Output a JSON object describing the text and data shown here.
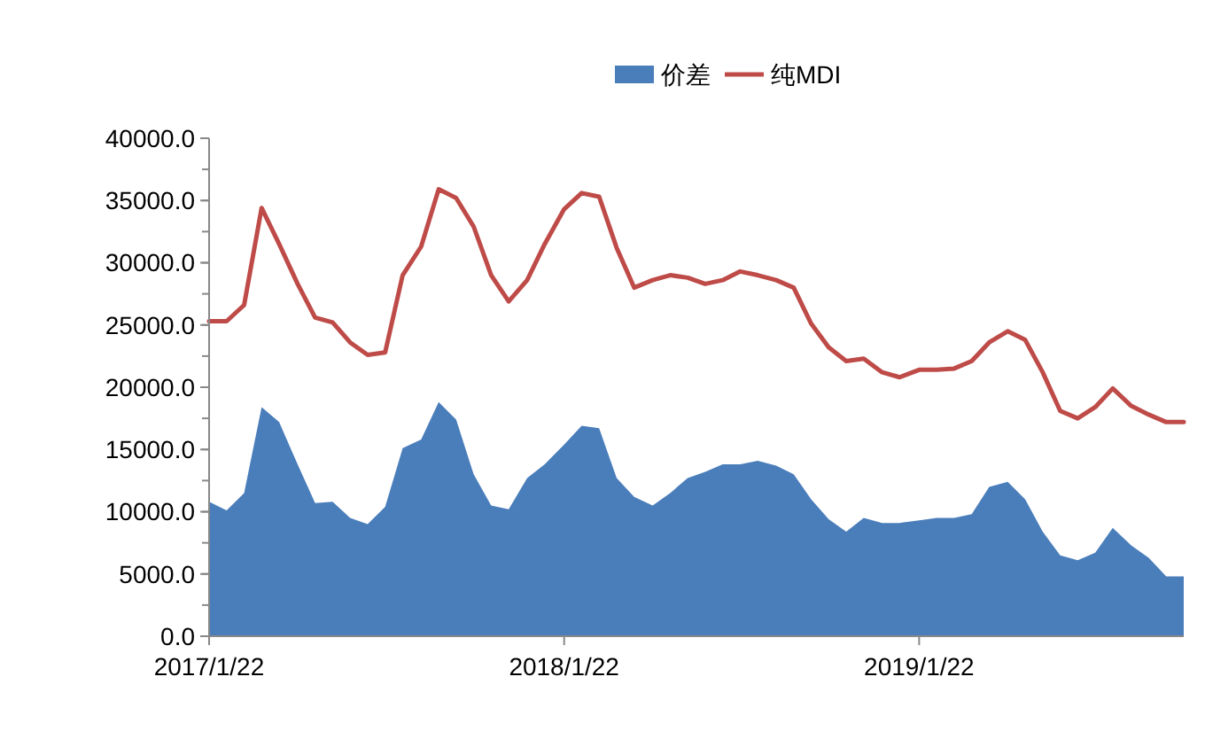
{
  "chart_data": {
    "type": "line",
    "legend": "top",
    "x": [
      "2017-01-22",
      "2017-02-09",
      "2017-02-27",
      "2017-03-17",
      "2017-04-04",
      "2017-04-23",
      "2017-05-11",
      "2017-05-29",
      "2017-06-16",
      "2017-07-04",
      "2017-07-22",
      "2017-08-09",
      "2017-08-28",
      "2017-09-15",
      "2017-10-03",
      "2017-10-21",
      "2017-11-08",
      "2017-11-26",
      "2017-12-15",
      "2018-01-02",
      "2018-01-22",
      "2018-02-09",
      "2018-02-27",
      "2018-03-17",
      "2018-04-04",
      "2018-04-23",
      "2018-05-11",
      "2018-05-29",
      "2018-06-16",
      "2018-07-04",
      "2018-07-22",
      "2018-08-09",
      "2018-08-28",
      "2018-09-15",
      "2018-10-03",
      "2018-10-21",
      "2018-11-08",
      "2018-11-26",
      "2018-12-15",
      "2019-01-02",
      "2019-01-22",
      "2019-02-09",
      "2019-02-27",
      "2019-03-17",
      "2019-04-04",
      "2019-04-23",
      "2019-05-11",
      "2019-05-29",
      "2019-06-16",
      "2019-07-04",
      "2019-07-22",
      "2019-08-09",
      "2019-08-28",
      "2019-09-15",
      "2019-10-03",
      "2019-10-21"
    ],
    "series": [
      {
        "name": "价差",
        "type": "area",
        "color": "#4a7ebb",
        "values": [
          10800,
          10100,
          11500,
          18400,
          17200,
          13800,
          10700,
          10800,
          9500,
          9000,
          10400,
          15100,
          15800,
          18800,
          17400,
          13000,
          10500,
          10200,
          12700,
          13800,
          15400,
          16900,
          16700,
          12700,
          11200,
          10500,
          11500,
          12700,
          13200,
          13800,
          13800,
          14100,
          13700,
          13000,
          11000,
          9400,
          8400,
          9500,
          9100,
          9100,
          9300,
          9500,
          9500,
          9800,
          12000,
          12400,
          11000,
          8400,
          6500,
          6100,
          6700,
          8700,
          7300,
          6300,
          4800,
          4800
        ]
      },
      {
        "name": "纯MDI",
        "type": "line",
        "color": "#be4b48",
        "values": [
          25300,
          25300,
          26600,
          34400,
          31500,
          28300,
          25600,
          25200,
          23600,
          22600,
          22800,
          29000,
          31300,
          35900,
          35200,
          32900,
          29000,
          26900,
          28600,
          31500,
          34300,
          35600,
          35300,
          31200,
          28000,
          28600,
          29000,
          28800,
          28300,
          28600,
          29300,
          29000,
          28600,
          28000,
          25100,
          23200,
          22100,
          22300,
          21200,
          20800,
          21400,
          21400,
          21500,
          22100,
          23600,
          24500,
          23800,
          21200,
          18100,
          17500,
          18400,
          19900,
          18500,
          17800,
          17200,
          17200
        ]
      }
    ],
    "xlim": [
      "2017-01-22",
      "2019-10-21"
    ],
    "xticks": [
      {
        "value": "2017-01-22",
        "label": "2017/1/22"
      },
      {
        "value": "2018-01-22",
        "label": "2018/1/22"
      },
      {
        "value": "2019-01-22",
        "label": "2019/1/22"
      }
    ],
    "ylim": [
      0,
      40000
    ],
    "yticks": [
      {
        "value": 0,
        "label": "0.0"
      },
      {
        "value": 5000,
        "label": "5000.0"
      },
      {
        "value": 10000,
        "label": "10000.0"
      },
      {
        "value": 15000,
        "label": "15000.0"
      },
      {
        "value": 20000,
        "label": "20000.0"
      },
      {
        "value": 25000,
        "label": "25000.0"
      },
      {
        "value": 30000,
        "label": "30000.0"
      },
      {
        "value": 35000,
        "label": "35000.0"
      },
      {
        "value": 40000,
        "label": "40000.0"
      }
    ],
    "grid": false,
    "marker": "none",
    "line_style": "solid"
  }
}
